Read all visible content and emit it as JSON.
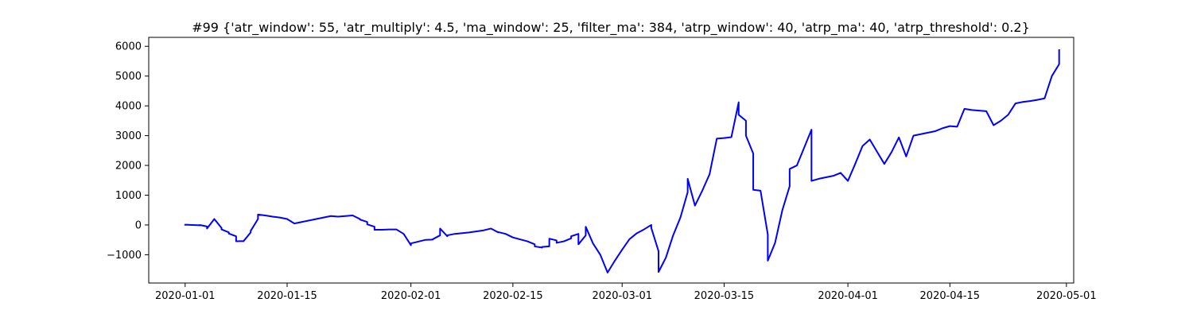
{
  "chart_data": {
    "type": "line",
    "title": "#99 {'atr_window': 55, 'atr_multiply': 4.5, 'ma_window': 25, 'filter_ma': 384, 'atrp_window': 40, 'atrp_ma': 40, 'atrp_threshold': 0.2}",
    "xlabel": "",
    "ylabel": "",
    "xlim": [
      "2019-12-27",
      "2020-05-02"
    ],
    "ylim": [
      -1950,
      6300
    ],
    "grid": false,
    "x_ticks": [
      "2020-01-01",
      "2020-01-15",
      "2020-02-01",
      "2020-02-15",
      "2020-03-01",
      "2020-03-15",
      "2020-04-01",
      "2020-04-15",
      "2020-05-01"
    ],
    "y_ticks": [
      -1000,
      0,
      1000,
      2000,
      3000,
      4000,
      5000,
      6000
    ],
    "series": [
      {
        "color": "#0000ff",
        "x": [
          "2020-01-01",
          "2020-01-01",
          "2020-01-02",
          "2020-01-03",
          "2020-01-03",
          "2020-01-04",
          "2020-01-04",
          "2020-01-05",
          "2020-01-06",
          "2020-01-06",
          "2020-01-07",
          "2020-01-07",
          "2020-01-08",
          "2020-01-08",
          "2020-01-09",
          "2020-01-09",
          "2020-01-10",
          "2020-01-10",
          "2020-01-11",
          "2020-01-11",
          "2020-01-12",
          "2020-01-13",
          "2020-01-14",
          "2020-01-15",
          "2020-01-16",
          "2020-01-18",
          "2020-01-20",
          "2020-01-21",
          "2020-01-22",
          "2020-01-23",
          "2020-01-24",
          "2020-01-25",
          "2020-01-25",
          "2020-01-26",
          "2020-01-26",
          "2020-01-27",
          "2020-01-27",
          "2020-01-28",
          "2020-01-29",
          "2020-01-30",
          "2020-01-31",
          "2020-02-01",
          "2020-02-01",
          "2020-02-02",
          "2020-02-03",
          "2020-02-04",
          "2020-02-04",
          "2020-02-05",
          "2020-02-05",
          "2020-02-06",
          "2020-02-06",
          "2020-02-07",
          "2020-02-09",
          "2020-02-11",
          "2020-02-12",
          "2020-02-13",
          "2020-02-13",
          "2020-02-14",
          "2020-02-15",
          "2020-02-17",
          "2020-02-18",
          "2020-02-18",
          "2020-02-19",
          "2020-02-19",
          "2020-02-20",
          "2020-02-20",
          "2020-02-21",
          "2020-02-21",
          "2020-02-22",
          "2020-02-23",
          "2020-02-23",
          "2020-02-24",
          "2020-02-24",
          "2020-02-25",
          "2020-02-25",
          "2020-02-26",
          "2020-02-27",
          "2020-02-28",
          "2020-02-29",
          "2020-03-01",
          "2020-03-02",
          "2020-03-03",
          "2020-03-04",
          "2020-03-05",
          "2020-03-05",
          "2020-03-06",
          "2020-03-06",
          "2020-03-07",
          "2020-03-08",
          "2020-03-09",
          "2020-03-10",
          "2020-03-10",
          "2020-03-11",
          "2020-03-12",
          "2020-03-13",
          "2020-03-14",
          "2020-03-15",
          "2020-03-16",
          "2020-03-17",
          "2020-03-17",
          "2020-03-18",
          "2020-03-18",
          "2020-03-19",
          "2020-03-19",
          "2020-03-20",
          "2020-03-21",
          "2020-03-21",
          "2020-03-22",
          "2020-03-23",
          "2020-03-24",
          "2020-03-24",
          "2020-03-25",
          "2020-03-26",
          "2020-03-27",
          "2020-03-27",
          "2020-03-28",
          "2020-03-29",
          "2020-03-30",
          "2020-03-31",
          "2020-04-01",
          "2020-04-02",
          "2020-04-03",
          "2020-04-04",
          "2020-04-05",
          "2020-04-06",
          "2020-04-07",
          "2020-04-08",
          "2020-04-09",
          "2020-04-10",
          "2020-04-11",
          "2020-04-12",
          "2020-04-13",
          "2020-04-14",
          "2020-04-15",
          "2020-04-16",
          "2020-04-17",
          "2020-04-18",
          "2020-04-19",
          "2020-04-20",
          "2020-04-21",
          "2020-04-22",
          "2020-04-23",
          "2020-04-24",
          "2020-04-25",
          "2020-04-26",
          "2020-04-27",
          "2020-04-28",
          "2020-04-29",
          "2020-04-30",
          "2020-04-30"
        ],
        "y": [
          -20,
          10,
          0,
          -10,
          0,
          -50,
          -120,
          200,
          -100,
          -150,
          -250,
          -290,
          -380,
          -550,
          -540,
          -550,
          -250,
          -200,
          200,
          350,
          320,
          280,
          250,
          200,
          50,
          150,
          250,
          300,
          280,
          300,
          320,
          200,
          180,
          100,
          20,
          -60,
          -160,
          -160,
          -150,
          -150,
          -300,
          -680,
          -620,
          -560,
          -500,
          -490,
          -480,
          -350,
          -120,
          -380,
          -350,
          -300,
          -250,
          -180,
          -120,
          -250,
          -240,
          -300,
          -420,
          -550,
          -650,
          -720,
          -760,
          -740,
          -720,
          -460,
          -520,
          -600,
          -550,
          -450,
          -380,
          -300,
          -650,
          -350,
          -60,
          -620,
          -1000,
          -1600,
          -1200,
          -830,
          -480,
          -280,
          -150,
          0,
          -100,
          -880,
          -1580,
          -1100,
          -350,
          250,
          1100,
          1550,
          650,
          1150,
          1700,
          2900,
          2920,
          2950,
          4120,
          3700,
          3500,
          3000,
          2400,
          1180,
          1150,
          -320,
          -1200,
          -600,
          500,
          1300,
          1880,
          2000,
          2600,
          3200,
          1480,
          1550,
          1600,
          1650,
          1750,
          1480,
          2050,
          2650,
          2870,
          2460,
          2050,
          2450,
          2940,
          2300,
          3000,
          3050,
          3100,
          3150,
          3250,
          3320,
          3300,
          3900,
          3860,
          3840,
          3820,
          3350,
          3500,
          3700,
          4080,
          4130,
          4160,
          4200,
          4250,
          5000,
          5400,
          5900
        ]
      }
    ]
  }
}
